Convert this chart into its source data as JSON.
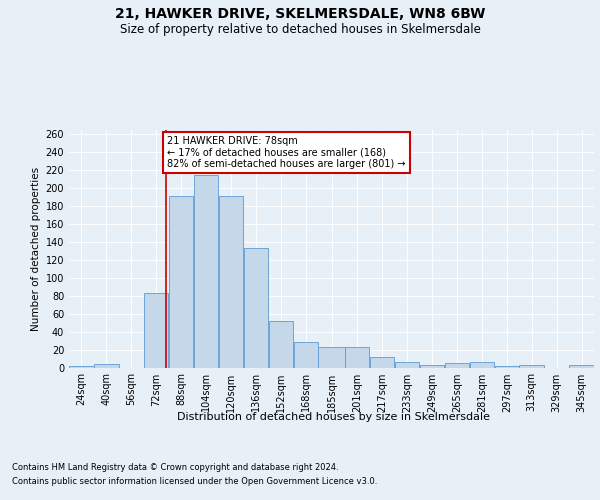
{
  "title_line1": "21, HAWKER DRIVE, SKELMERSDALE, WN8 6BW",
  "title_line2": "Size of property relative to detached houses in Skelmersdale",
  "xlabel": "Distribution of detached houses by size in Skelmersdale",
  "ylabel": "Number of detached properties",
  "footnote1": "Contains HM Land Registry data © Crown copyright and database right 2024.",
  "footnote2": "Contains public sector information licensed under the Open Government Licence v3.0.",
  "annotation_line1": "21 HAWKER DRIVE: 78sqm",
  "annotation_line2": "← 17% of detached houses are smaller (168)",
  "annotation_line3": "82% of semi-detached houses are larger (801) →",
  "bar_color": "#c5d8ea",
  "bar_edge_color": "#5b9bd5",
  "vline_color": "#cc0000",
  "vline_x": 78,
  "categories": [
    "24sqm",
    "40sqm",
    "56sqm",
    "72sqm",
    "88sqm",
    "104sqm",
    "120sqm",
    "136sqm",
    "152sqm",
    "168sqm",
    "185sqm",
    "201sqm",
    "217sqm",
    "233sqm",
    "249sqm",
    "265sqm",
    "281sqm",
    "297sqm",
    "313sqm",
    "329sqm",
    "345sqm"
  ],
  "bin_edges": [
    16,
    32,
    48,
    64,
    80,
    96,
    112,
    128,
    144,
    160,
    176,
    193,
    209,
    225,
    241,
    257,
    273,
    289,
    305,
    321,
    337,
    353
  ],
  "values": [
    2,
    4,
    0,
    83,
    191,
    215,
    191,
    133,
    52,
    29,
    23,
    23,
    12,
    6,
    3,
    5,
    6,
    2,
    3,
    0,
    3
  ],
  "ylim": [
    0,
    265
  ],
  "yticks": [
    0,
    20,
    40,
    60,
    80,
    100,
    120,
    140,
    160,
    180,
    200,
    220,
    240,
    260
  ],
  "background_color": "#e8f0f7",
  "plot_bg_color": "#e8f0f7",
  "grid_color": "#ffffff",
  "title1_fontsize": 10,
  "title2_fontsize": 8.5,
  "xlabel_fontsize": 8,
  "ylabel_fontsize": 7.5,
  "tick_fontsize": 7,
  "footnote_fontsize": 6,
  "annotation_fontsize": 7,
  "annotation_box_color": "#ffffff",
  "annotation_box_edge_color": "#cc0000"
}
